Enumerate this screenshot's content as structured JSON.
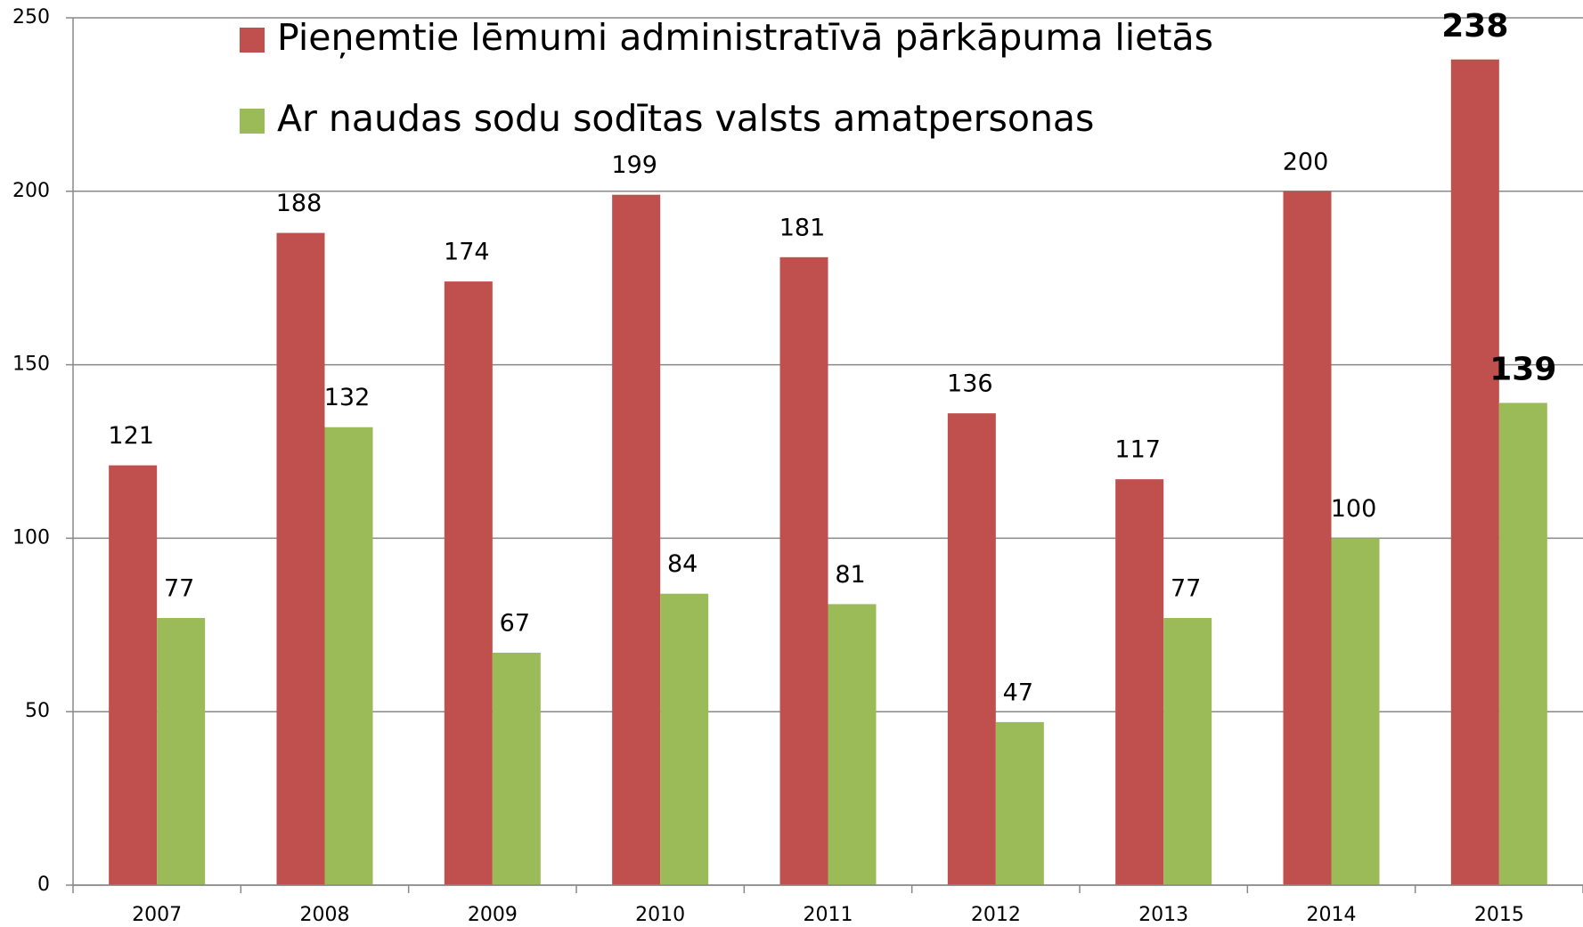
{
  "chart_data": {
    "type": "bar",
    "categories": [
      "2007",
      "2008",
      "2009",
      "2010",
      "2011",
      "2012",
      "2013",
      "2014",
      "2015"
    ],
    "series": [
      {
        "name": "Pieņemtie lēmumi administratīvā pārkāpuma lietās",
        "color": "#c0504d",
        "values": [
          121,
          188,
          174,
          199,
          181,
          136,
          117,
          200,
          238
        ]
      },
      {
        "name": "Ar naudas sodu sodītas valsts amatpersonas",
        "color": "#9bbb59",
        "values": [
          77,
          132,
          67,
          84,
          81,
          47,
          77,
          100,
          139
        ]
      }
    ],
    "ylim": [
      0,
      250
    ],
    "yticks": [
      0,
      50,
      100,
      150,
      200,
      250
    ],
    "grid": true,
    "legend": "top"
  }
}
